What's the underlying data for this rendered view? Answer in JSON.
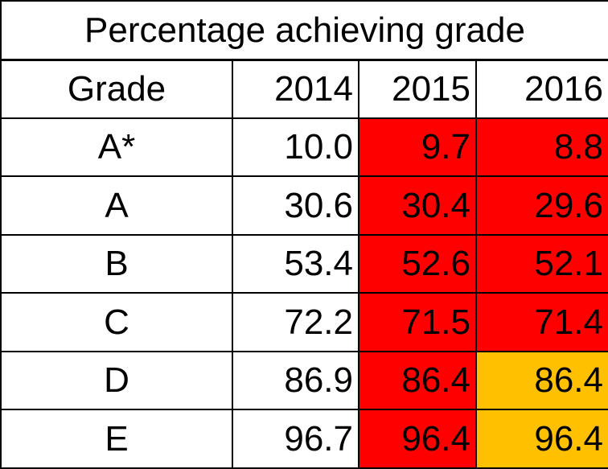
{
  "chart_data": {
    "type": "table",
    "title": "Percentage achieving grade",
    "columns": [
      "Grade",
      "2014",
      "2015",
      "2016"
    ],
    "rows": [
      {
        "grade": "A*",
        "values": [
          "10.0",
          "9.7",
          "8.8"
        ],
        "fills": [
          "#ffffff",
          "#ff0000",
          "#ff0000"
        ]
      },
      {
        "grade": "A",
        "values": [
          "30.6",
          "30.4",
          "29.6"
        ],
        "fills": [
          "#ffffff",
          "#ff0000",
          "#ff0000"
        ]
      },
      {
        "grade": "B",
        "values": [
          "53.4",
          "52.6",
          "52.1"
        ],
        "fills": [
          "#ffffff",
          "#ff0000",
          "#ff0000"
        ]
      },
      {
        "grade": "C",
        "values": [
          "72.2",
          "71.5",
          "71.4"
        ],
        "fills": [
          "#ffffff",
          "#ff0000",
          "#ff0000"
        ]
      },
      {
        "grade": "D",
        "values": [
          "86.9",
          "86.4",
          "86.4"
        ],
        "fills": [
          "#ffffff",
          "#ff0000",
          "#ffc000"
        ]
      },
      {
        "grade": "E",
        "values": [
          "96.7",
          "96.4",
          "96.4"
        ],
        "fills": [
          "#ffffff",
          "#ff0000",
          "#ffc000"
        ]
      }
    ]
  }
}
